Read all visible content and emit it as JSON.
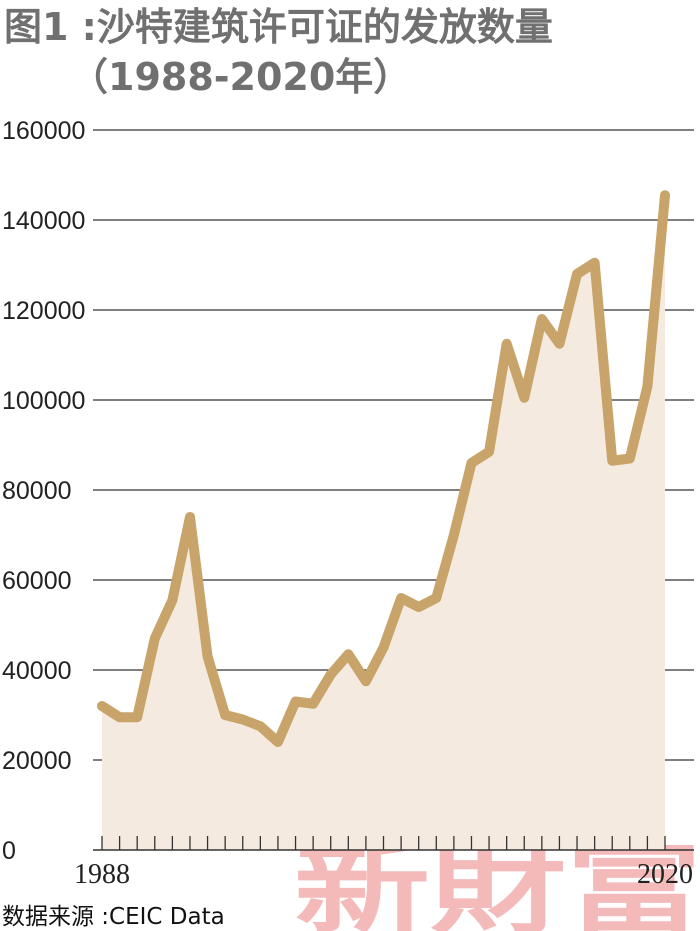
{
  "title": {
    "line1": "图1 :沙特建筑许可证的发放数量",
    "line2": "（1988-2020年）"
  },
  "source": "数据来源 :CEIC Data",
  "watermark": "新財富",
  "colors": {
    "line": "#c9a46a",
    "area": "#f5eadf",
    "grid": "#333333",
    "text": "#222222",
    "title": "#707070",
    "watermark": "#f1a3a3"
  },
  "chart_data": {
    "type": "area",
    "title": "图1 :沙特建筑许可证的发放数量（1988-2020年）",
    "xlabel": "",
    "ylabel": "",
    "x": [
      1988,
      1989,
      1990,
      1991,
      1992,
      1993,
      1994,
      1995,
      1996,
      1997,
      1998,
      1999,
      2000,
      2001,
      2002,
      2003,
      2004,
      2005,
      2006,
      2007,
      2008,
      2009,
      2010,
      2011,
      2012,
      2013,
      2014,
      2015,
      2016,
      2017,
      2018,
      2019,
      2020
    ],
    "values": [
      32000,
      29500,
      29500,
      47000,
      55500,
      74000,
      43000,
      30000,
      29000,
      27500,
      24000,
      33000,
      32500,
      39000,
      43500,
      37500,
      45000,
      56000,
      54000,
      56000,
      70000,
      86000,
      88500,
      112500,
      100500,
      118000,
      112500,
      128000,
      130500,
      86500,
      87000,
      103000,
      145500
    ],
    "x_tick_labels": [
      "1988",
      "2020"
    ],
    "y_ticks": [
      0,
      20000,
      40000,
      60000,
      80000,
      100000,
      120000,
      140000,
      160000
    ],
    "ylim": [
      0,
      160000
    ],
    "xlim": [
      1988,
      2020
    ],
    "grid": true,
    "legend": "none"
  }
}
